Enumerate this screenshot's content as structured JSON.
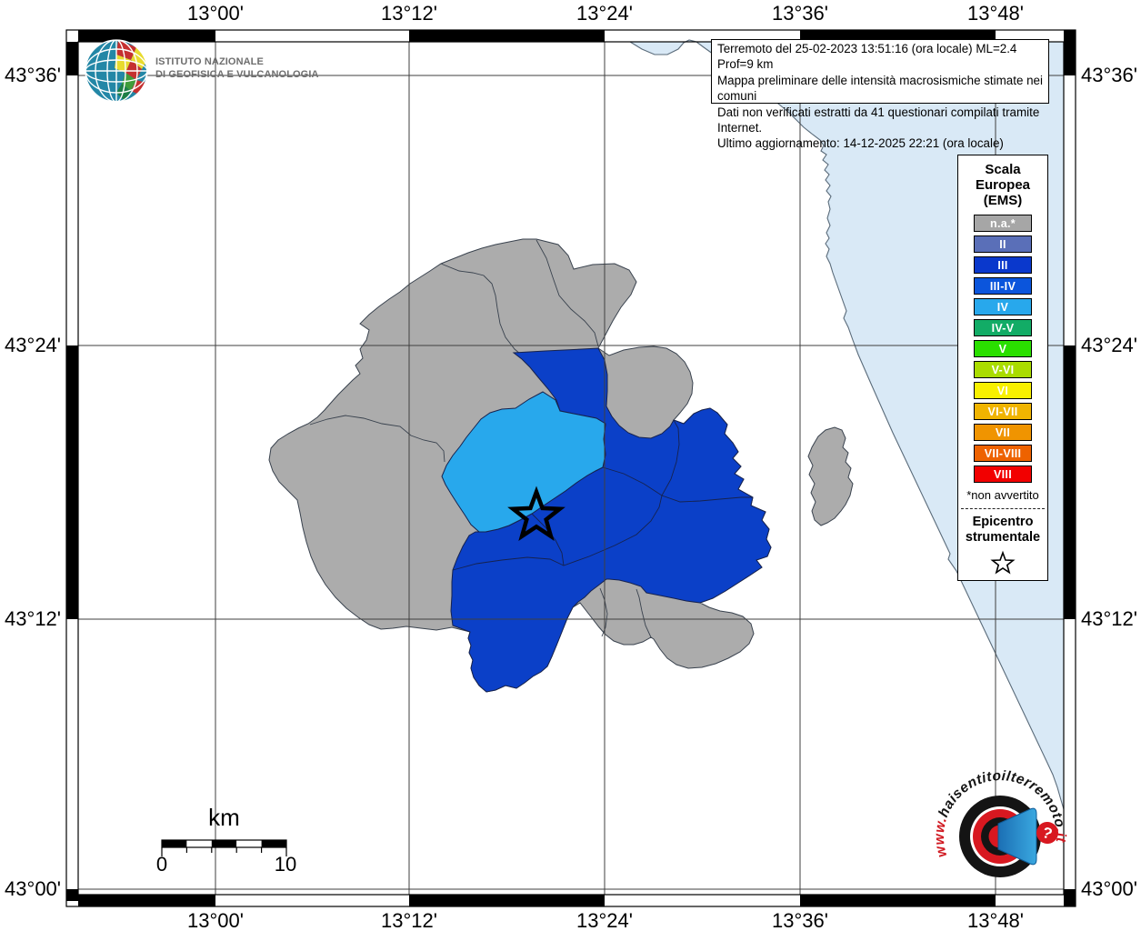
{
  "axis": {
    "top": [
      "13°00'",
      "13°12'",
      "13°24'",
      "13°36'",
      "13°48'"
    ],
    "bottom": [
      "13°00'",
      "13°12'",
      "13°24'",
      "13°36'",
      "13°48'"
    ],
    "left": [
      "43°36'",
      "43°24'",
      "43°12'",
      "43°00'"
    ],
    "right": [
      "43°36'",
      "43°24'",
      "43°12'",
      "43°00'"
    ]
  },
  "info_box": {
    "lines": [
      "Terremoto del 25-02-2023 13:51:16 (ora locale) ML=2.4 Prof=9 km",
      "Mappa preliminare delle intensità macrosismiche stimate nei comuni",
      "Dati non verificati estratti da 41 questionari compilati tramite Internet.",
      "Ultimo aggiornamento: 14-12-2025 22:21 (ora locale)"
    ]
  },
  "legend": {
    "title_lines": [
      "Scala",
      "Europea",
      "(EMS)"
    ],
    "items": [
      {
        "label": "n.a.*",
        "color": "#A6A6A6"
      },
      {
        "label": "II",
        "color": "#5A6FB8"
      },
      {
        "label": "III",
        "color": "#0A38CC"
      },
      {
        "label": "III-IV",
        "color": "#0B55DC"
      },
      {
        "label": "IV",
        "color": "#28A8EC"
      },
      {
        "label": "IV-V",
        "color": "#12AC66"
      },
      {
        "label": "V",
        "color": "#2ADF00"
      },
      {
        "label": "V-VI",
        "color": "#AADC00"
      },
      {
        "label": "VI",
        "color": "#F8F000"
      },
      {
        "label": "VI-VII",
        "color": "#F0B400"
      },
      {
        "label": "VII",
        "color": "#F09400"
      },
      {
        "label": "VII-VIII",
        "color": "#EE6200"
      },
      {
        "label": "VIII",
        "color": "#F20000"
      }
    ],
    "footnote": "*non avvertito",
    "epicenter_lines": [
      "Epicentro",
      "strumentale"
    ]
  },
  "scale_bar": {
    "unit": "km",
    "start": "0",
    "end": "10"
  },
  "map_colors": {
    "sea": "#D9E9F6",
    "na_region": "#ACACAC",
    "iii_region": "#0B40C8",
    "iv_region": "#28A8EC"
  },
  "logos": {
    "ingv": {
      "line1": "ISTITUTO NAZIONALE",
      "line2": "DI GEOFISICA E VULCANOLOGIA"
    },
    "hsit": {
      "pre": "www.",
      "main": "haisentitoilterremoto",
      "post": ".it",
      "question": "?"
    }
  }
}
